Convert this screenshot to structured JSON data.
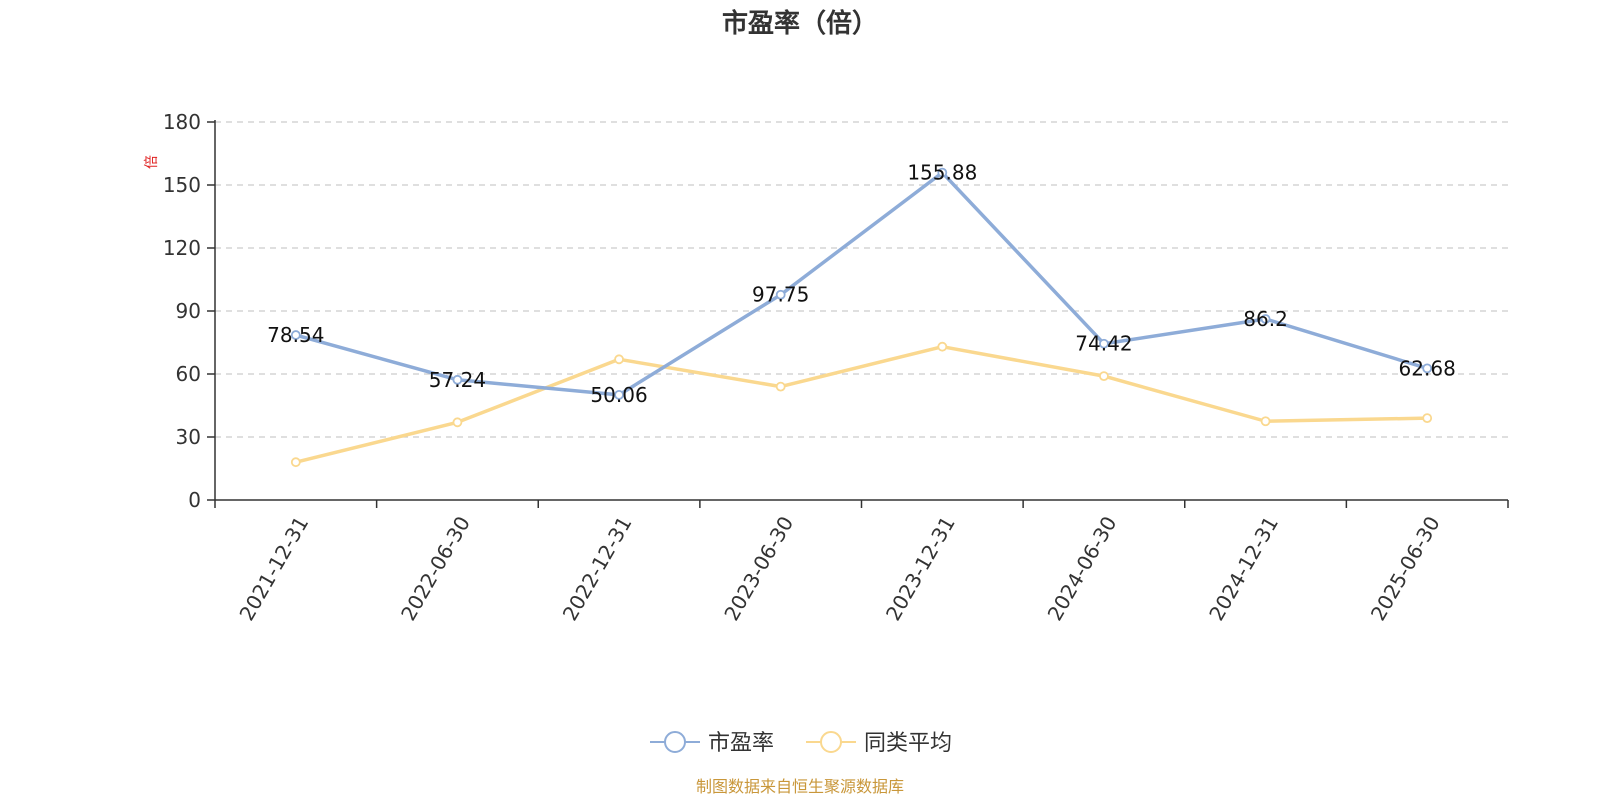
{
  "chart_data": {
    "type": "line",
    "title": "市盈率（倍）",
    "ylabel": "倍",
    "categories": [
      "2021-12-31",
      "2022-06-30",
      "2022-12-31",
      "2023-06-30",
      "2023-12-31",
      "2024-06-30",
      "2024-12-31",
      "2025-06-30"
    ],
    "yticks": [
      "0",
      "30",
      "60",
      "90",
      "120",
      "150",
      "180"
    ],
    "ylim": [
      0,
      180
    ],
    "grid": true,
    "legend_position": "bottom",
    "series": [
      {
        "name": "市盈率",
        "color": "#8eacd8",
        "values": [
          78.54,
          57.24,
          50.06,
          97.75,
          155.88,
          74.42,
          86.2,
          62.68
        ],
        "labels": [
          "78.54",
          "57.24",
          "50.06",
          "97.75",
          "155.88",
          "74.42",
          "86.2",
          "62.68"
        ]
      },
      {
        "name": "同类平均",
        "color": "#fad88f",
        "values": [
          18,
          37,
          67,
          54,
          73,
          59,
          37.5,
          39
        ]
      }
    ]
  },
  "colors": {
    "ylabel": "#e02020",
    "source": "#c9973a"
  },
  "source": "制图数据来自恒生聚源数据库"
}
